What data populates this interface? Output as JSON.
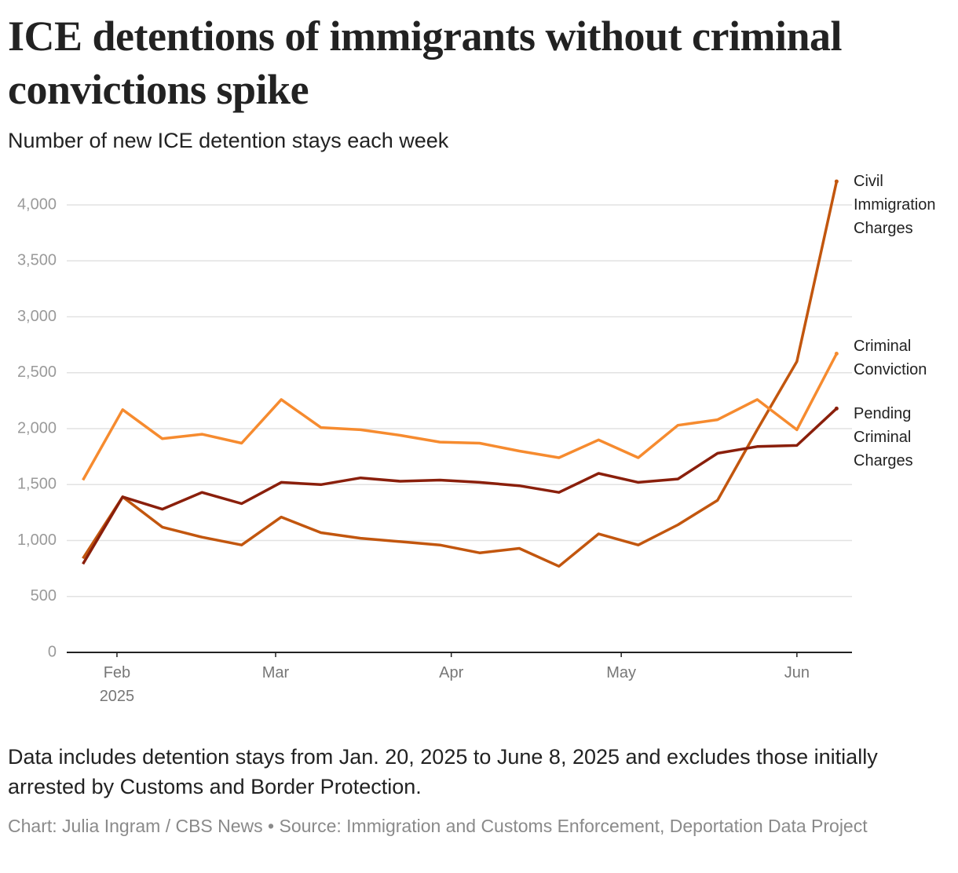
{
  "chart_data": {
    "type": "line",
    "title": "ICE detentions of immigrants without criminal convictions spike",
    "subtitle": "Number of new ICE detention stays each week",
    "x": [
      "2025-01-26",
      "2025-02-02",
      "2025-02-09",
      "2025-02-16",
      "2025-02-23",
      "2025-03-02",
      "2025-03-09",
      "2025-03-16",
      "2025-03-23",
      "2025-03-30",
      "2025-04-06",
      "2025-04-13",
      "2025-04-20",
      "2025-04-27",
      "2025-05-04",
      "2025-05-11",
      "2025-05-18",
      "2025-05-25",
      "2025-06-01",
      "2025-06-08"
    ],
    "xlim": [
      "2025-01-23",
      "2025-06-11"
    ],
    "xticks": [
      {
        "value": "2025-02-01",
        "label": "Feb 2025"
      },
      {
        "value": "2025-03-01",
        "label": "Mar"
      },
      {
        "value": "2025-04-01",
        "label": "Apr"
      },
      {
        "value": "2025-05-01",
        "label": "May"
      },
      {
        "value": "2025-06-01",
        "label": "Jun"
      }
    ],
    "ylim": [
      0,
      4200
    ],
    "yticks": [
      0,
      500,
      {
        "value": 1000,
        "label": "1,000"
      },
      {
        "value": 1500,
        "label": "1,500"
      },
      {
        "value": 2000,
        "label": "2,000"
      },
      {
        "value": 2500,
        "label": "2,500"
      },
      {
        "value": 3000,
        "label": "3,000"
      },
      {
        "value": 3500,
        "label": "3,500"
      },
      {
        "value": 4000,
        "label": "4,000"
      }
    ],
    "grid": true,
    "series": [
      {
        "name": "Civil Immigration Charges",
        "color": "#c2560e",
        "values": [
          840,
          1390,
          1120,
          1030,
          960,
          1210,
          1070,
          1020,
          990,
          960,
          890,
          930,
          770,
          1060,
          960,
          1140,
          1360,
          1990,
          2600,
          4210
        ]
      },
      {
        "name": "Criminal Conviction",
        "color": "#f68b2f",
        "values": [
          1540,
          2170,
          1910,
          1950,
          1870,
          2260,
          2010,
          1990,
          1940,
          1880,
          1870,
          1800,
          1740,
          1900,
          1740,
          2030,
          2080,
          2260,
          1990,
          2670
        ]
      },
      {
        "name": "Pending Criminal Charges",
        "color": "#8a1f0b",
        "values": [
          790,
          1390,
          1280,
          1430,
          1330,
          1520,
          1500,
          1560,
          1530,
          1540,
          1520,
          1490,
          1430,
          1600,
          1520,
          1550,
          1780,
          1840,
          1850,
          2180
        ]
      }
    ],
    "note": "Data includes detention stays from Jan. 20, 2025 to June 8, 2025 and excludes those initially arrested by Customs and Border Protection.",
    "source": "Chart: Julia Ingram / CBS News • Source: Immigration and Customs Enforcement, Deportation Data Project"
  }
}
